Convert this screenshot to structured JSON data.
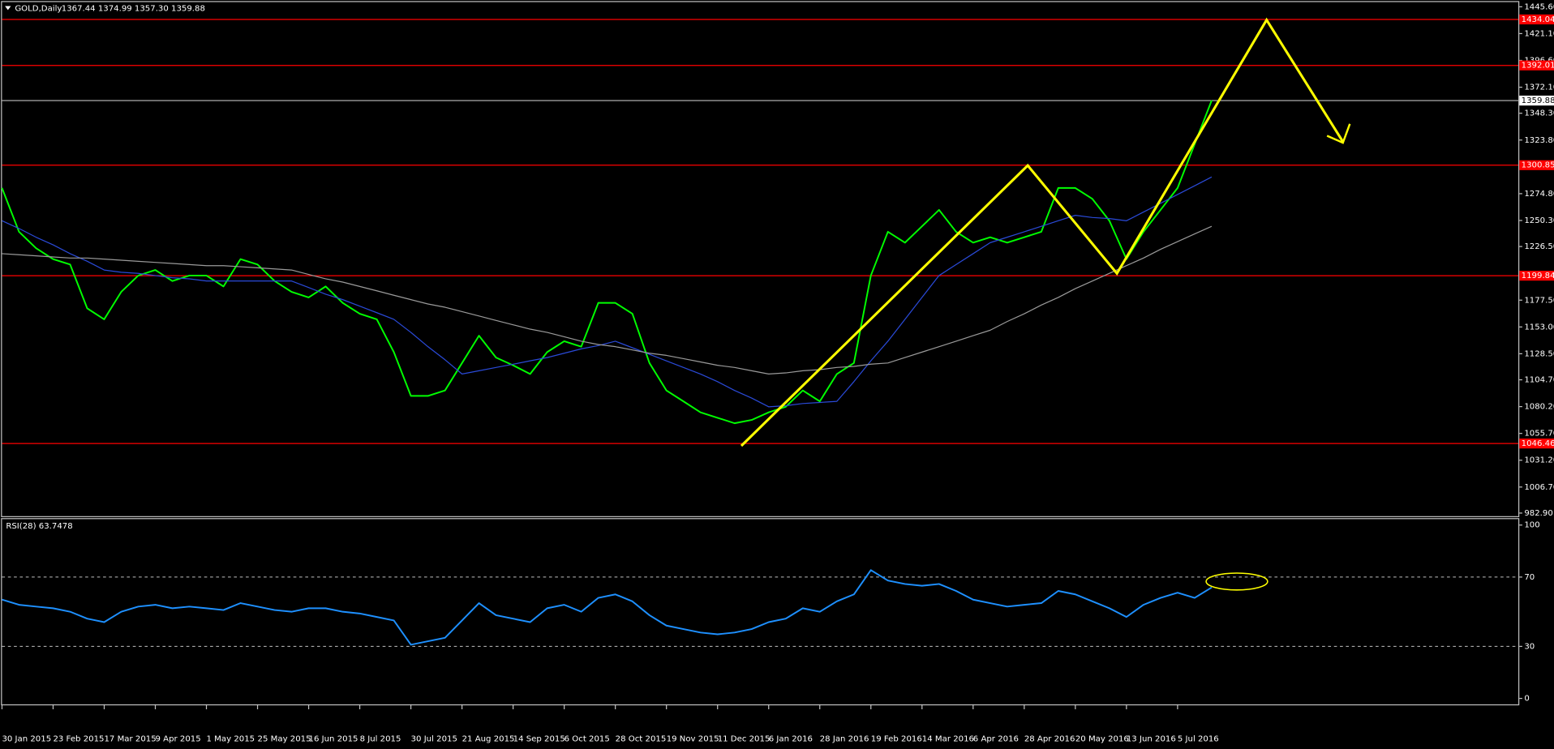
{
  "chart_data": [
    {
      "type": "line",
      "title": "GOLD,Daily",
      "subtitle": "1367.44 1374.99 1357.30 1359.88",
      "x": [
        0,
        1,
        2,
        3,
        4,
        5,
        6,
        7,
        8,
        9,
        10,
        11,
        12,
        13,
        14,
        15,
        16,
        17,
        18,
        19,
        20,
        21,
        22,
        23,
        24,
        25,
        26,
        27,
        28,
        29,
        30,
        31,
        32,
        33,
        34,
        35,
        36,
        37,
        38,
        39,
        40,
        41,
        42,
        43,
        44,
        45,
        46,
        47,
        48,
        49,
        50,
        51,
        52,
        53,
        54,
        55,
        56,
        57,
        58,
        59,
        60,
        61,
        62,
        63,
        64,
        65,
        66,
        67,
        68,
        69,
        70,
        71
      ],
      "xlim": [
        0,
        89
      ],
      "xticks": [
        {
          "value": 0,
          "label": "30 Jan 2015"
        },
        {
          "value": 3,
          "label": "23 Feb 2015"
        },
        {
          "value": 6,
          "label": "17 Mar 2015"
        },
        {
          "value": 9,
          "label": "9 Apr 2015"
        },
        {
          "value": 12,
          "label": "1 May 2015"
        },
        {
          "value": 15,
          "label": "25 May 2015"
        },
        {
          "value": 18,
          "label": "16 Jun 2015"
        },
        {
          "value": 21,
          "label": "8 Jul 2015"
        },
        {
          "value": 24,
          "label": "30 Jul 2015"
        },
        {
          "value": 27,
          "label": "21 Aug 2015"
        },
        {
          "value": 30,
          "label": "14 Sep 2015"
        },
        {
          "value": 33,
          "label": "6 Oct 2015"
        },
        {
          "value": 36,
          "label": "28 Oct 2015"
        },
        {
          "value": 39,
          "label": "19 Nov 2015"
        },
        {
          "value": 42,
          "label": "11 Dec 2015"
        },
        {
          "value": 45,
          "label": "6 Jan 2016"
        },
        {
          "value": 48,
          "label": "28 Jan 2016"
        },
        {
          "value": 51,
          "label": "19 Feb 2016"
        },
        {
          "value": 54,
          "label": "14 Mar 2016"
        },
        {
          "value": 57,
          "label": "6 Apr 2016"
        },
        {
          "value": 60,
          "label": "28 Apr 2016"
        },
        {
          "value": 63,
          "label": "20 May 2016"
        },
        {
          "value": 66,
          "label": "13 Jun 2016"
        },
        {
          "value": 69,
          "label": "5 Jul 2016"
        }
      ],
      "ylim": [
        981,
        1449
      ],
      "yticks": [
        {
          "value": 1445.6,
          "label": "1445.60"
        },
        {
          "value": 1421.1,
          "label": "1421.10"
        },
        {
          "value": 1396.6,
          "label": "1396.60"
        },
        {
          "value": 1372.1,
          "label": "1372.10"
        },
        {
          "value": 1348.3,
          "label": "1348.30"
        },
        {
          "value": 1323.8,
          "label": "1323.80"
        },
        {
          "value": 1274.8,
          "label": "1274.80"
        },
        {
          "value": 1250.3,
          "label": "1250.30"
        },
        {
          "value": 1226.5,
          "label": "1226.50"
        },
        {
          "value": 1177.5,
          "label": "1177.50"
        },
        {
          "value": 1153,
          "label": "1153.00"
        },
        {
          "value": 1128.5,
          "label": "1128.50"
        },
        {
          "value": 1104.7,
          "label": "1104.70"
        },
        {
          "value": 1080.2,
          "label": "1080.20"
        },
        {
          "value": 1055.7,
          "label": "1055.70"
        },
        {
          "value": 1031.2,
          "label": "1031.20"
        },
        {
          "value": 1006.7,
          "label": "1006.70"
        },
        {
          "value": 982.9,
          "label": "982.90"
        }
      ],
      "grid": false,
      "series": [
        {
          "color": "#00ff00",
          "values": [
            1280,
            1240,
            1225,
            1215,
            1210,
            1170,
            1160,
            1185,
            1200,
            1205,
            1195,
            1200,
            1200,
            1190,
            1215,
            1210,
            1195,
            1185,
            1180,
            1190,
            1175,
            1165,
            1160,
            1130,
            1090,
            1090,
            1095,
            1120,
            1145,
            1125,
            1118,
            1110,
            1130,
            1140,
            1135,
            1175,
            1175,
            1165,
            1120,
            1095,
            1085,
            1075,
            1070,
            1065,
            1068,
            1075,
            1080,
            1095,
            1085,
            1110,
            1120,
            1200,
            1240,
            1230,
            1245,
            1260,
            1240,
            1230,
            1235,
            1230,
            1235,
            1240,
            1280,
            1280,
            1270,
            1250,
            1215,
            1240,
            1260,
            1280,
            1320,
            1360
          ]
        },
        {
          "color": "#2a4ad8",
          "values": [
            1250,
            1243,
            1235,
            1228,
            1220,
            1213,
            1205,
            1203,
            1202,
            1200,
            1198,
            1197,
            1195,
            1195,
            1195,
            1195,
            1195,
            1195,
            1189,
            1183,
            1178,
            1172,
            1166,
            1160,
            1148,
            1135,
            1123,
            1110,
            1113,
            1116,
            1119,
            1122,
            1125,
            1129,
            1133,
            1136,
            1140,
            1134,
            1128,
            1122,
            1116,
            1110,
            1103,
            1095,
            1088,
            1080,
            1081,
            1083,
            1084,
            1085,
            1103,
            1122,
            1140,
            1160,
            1180,
            1200,
            1210,
            1220,
            1230,
            1235,
            1240,
            1245,
            1250,
            1255,
            1253,
            1252,
            1250,
            1258,
            1266,
            1274,
            1282,
            1290
          ]
        },
        {
          "color": "#9a9a9a",
          "values": [
            1220,
            1219,
            1218,
            1217,
            1216,
            1216,
            1215,
            1214,
            1213,
            1212,
            1211,
            1210,
            1209,
            1209,
            1208,
            1207,
            1206,
            1205,
            1201,
            1197,
            1194,
            1190,
            1186,
            1182,
            1178,
            1174,
            1171,
            1167,
            1163,
            1159,
            1155,
            1151,
            1148,
            1144,
            1140,
            1137,
            1135,
            1132,
            1129,
            1127,
            1124,
            1121,
            1118,
            1116,
            1113,
            1110,
            1111,
            1113,
            1114,
            1116,
            1117,
            1119,
            1120,
            1125,
            1130,
            1135,
            1140,
            1145,
            1150,
            1158,
            1165,
            1173,
            1180,
            1188,
            1195,
            1202,
            1209,
            1216,
            1224,
            1231,
            1238,
            1245
          ]
        }
      ],
      "levels": {
        "color": "#ff0000",
        "values": [
          1434.04,
          1392.01,
          1300.85,
          1199.84,
          1046.46
        ]
      },
      "last_price": {
        "color": "#c0c0c0",
        "value": 1359.88
      }
    },
    {
      "type": "line",
      "title": "RSI(28) 63.7478",
      "x": [
        0,
        1,
        2,
        3,
        4,
        5,
        6,
        7,
        8,
        9,
        10,
        11,
        12,
        13,
        14,
        15,
        16,
        17,
        18,
        19,
        20,
        21,
        22,
        23,
        24,
        25,
        26,
        27,
        28,
        29,
        30,
        31,
        32,
        33,
        34,
        35,
        36,
        37,
        38,
        39,
        40,
        41,
        42,
        43,
        44,
        45,
        46,
        47,
        48,
        49,
        50,
        51,
        52,
        53,
        54,
        55,
        56,
        57,
        58,
        59,
        60,
        61,
        62,
        63,
        64,
        65,
        66,
        67,
        68,
        69,
        70,
        71
      ],
      "xlim": [
        0,
        89
      ],
      "ylim": [
        0,
        100
      ],
      "yticks": [
        100,
        70,
        30,
        0
      ],
      "levels": {
        "color": "#c0c0c0",
        "values": [
          70,
          30
        ]
      },
      "series": [
        {
          "color": "#1e90ff",
          "values": [
            57,
            54,
            53,
            52,
            50,
            46,
            44,
            50,
            53,
            54,
            52,
            53,
            52,
            51,
            55,
            53,
            51,
            50,
            52,
            52,
            50,
            49,
            47,
            45,
            31,
            33,
            35,
            45,
            55,
            48,
            46,
            44,
            52,
            54,
            50,
            58,
            60,
            56,
            48,
            42,
            40,
            38,
            37,
            38,
            40,
            44,
            46,
            52,
            50,
            56,
            60,
            74,
            68,
            66,
            65,
            66,
            62,
            57,
            55,
            53,
            54,
            55,
            62,
            60,
            56,
            52,
            47,
            54,
            58,
            61,
            58,
            64
          ]
        }
      ]
    }
  ]
}
